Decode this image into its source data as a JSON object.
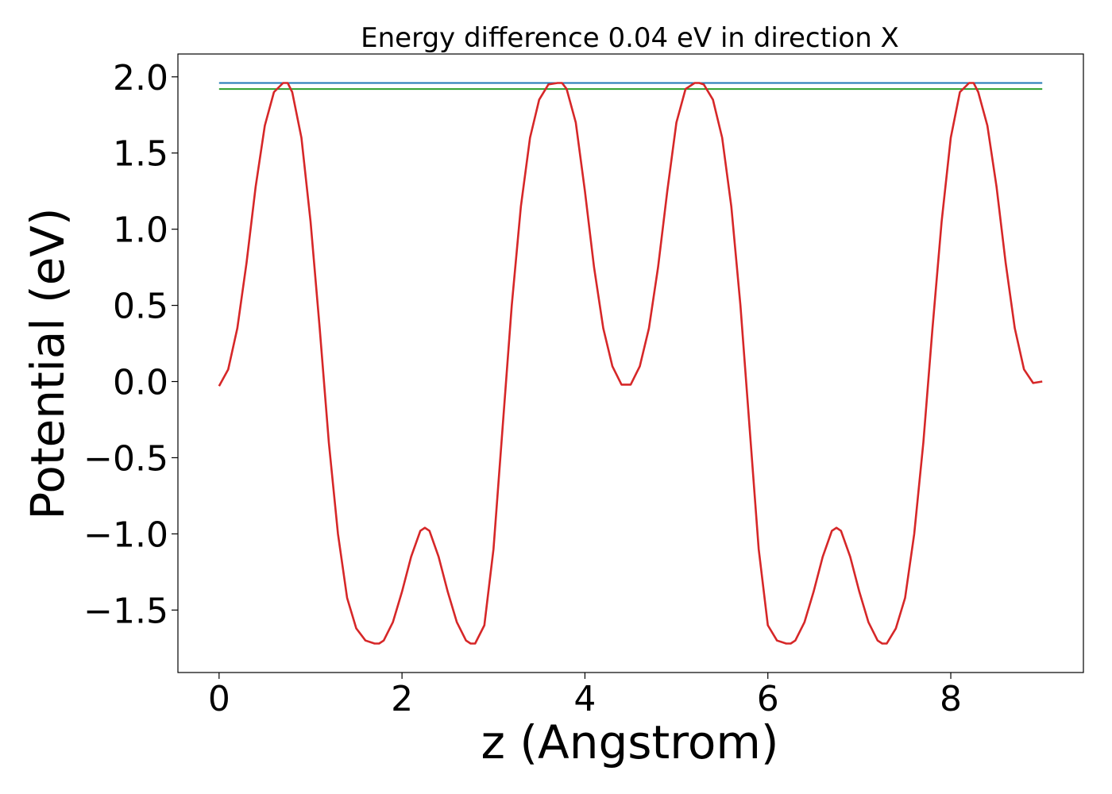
{
  "chart_data": {
    "type": "line",
    "title": "Energy difference 0.04 eV in direction X",
    "xlabel": "z (Angstrom)",
    "ylabel": "Potential (eV)",
    "xlim": [
      -0.45,
      9.45
    ],
    "ylim": [
      -1.91,
      2.15
    ],
    "xticks": [
      0,
      2,
      4,
      6,
      8
    ],
    "xtick_labels": [
      "0",
      "2",
      "4",
      "6",
      "8"
    ],
    "yticks": [
      -1.5,
      -1.0,
      -0.5,
      0.0,
      0.5,
      1.0,
      1.5,
      2.0
    ],
    "ytick_labels": [
      "−1.5",
      "−1.0",
      "−0.5",
      "0.0",
      "0.5",
      "1.0",
      "1.5",
      "2.0"
    ],
    "grid": false,
    "series": [
      {
        "color": "#1f77b4",
        "x": [
          0,
          9
        ],
        "y": [
          1.96,
          1.96
        ]
      },
      {
        "color": "#2ca02c",
        "x": [
          0,
          9
        ],
        "y": [
          1.92,
          1.92
        ]
      },
      {
        "color": "#d62728",
        "x": [
          0,
          0.1,
          0.2,
          0.3,
          0.4,
          0.5,
          0.6,
          0.7,
          0.75,
          0.8,
          0.9,
          1.0,
          1.1,
          1.2,
          1.3,
          1.4,
          1.5,
          1.6,
          1.7,
          1.75,
          1.8,
          1.9,
          2.0,
          2.1,
          2.2,
          2.25,
          2.3,
          2.4,
          2.5,
          2.6,
          2.7,
          2.75,
          2.8,
          2.9,
          3.0,
          3.1,
          3.2,
          3.3,
          3.4,
          3.5,
          3.6,
          3.7,
          3.75,
          3.8,
          3.9,
          4.0,
          4.1,
          4.2,
          4.3,
          4.4,
          4.5,
          4.6,
          4.7,
          4.8,
          4.9,
          5.0,
          5.1,
          5.2,
          5.25,
          5.3,
          5.4,
          5.5,
          5.6,
          5.7,
          5.8,
          5.9,
          6.0,
          6.1,
          6.2,
          6.25,
          6.3,
          6.4,
          6.5,
          6.6,
          6.7,
          6.75,
          6.8,
          6.9,
          7.0,
          7.1,
          7.2,
          7.25,
          7.3,
          7.4,
          7.5,
          7.6,
          7.7,
          7.8,
          7.9,
          8.0,
          8.1,
          8.2,
          8.25,
          8.3,
          8.4,
          8.5,
          8.6,
          8.7,
          8.8,
          8.9,
          9.0
        ],
        "y": [
          -0.03,
          0.08,
          0.35,
          0.78,
          1.28,
          1.68,
          1.9,
          1.96,
          1.96,
          1.9,
          1.6,
          1.05,
          0.35,
          -0.4,
          -1.0,
          -1.42,
          -1.62,
          -1.7,
          -1.72,
          -1.72,
          -1.7,
          -1.58,
          -1.38,
          -1.15,
          -0.98,
          -0.96,
          -0.98,
          -1.15,
          -1.38,
          -1.58,
          -1.7,
          -1.72,
          -1.72,
          -1.6,
          -1.1,
          -0.3,
          0.5,
          1.15,
          1.6,
          1.85,
          1.95,
          1.96,
          1.96,
          1.92,
          1.7,
          1.25,
          0.75,
          0.35,
          0.1,
          -0.02,
          -0.02,
          0.1,
          0.35,
          0.75,
          1.25,
          1.7,
          1.92,
          1.96,
          1.96,
          1.95,
          1.85,
          1.6,
          1.15,
          0.5,
          -0.3,
          -1.1,
          -1.6,
          -1.7,
          -1.72,
          -1.72,
          -1.7,
          -1.58,
          -1.38,
          -1.15,
          -0.98,
          -0.96,
          -0.98,
          -1.15,
          -1.38,
          -1.58,
          -1.7,
          -1.72,
          -1.72,
          -1.62,
          -1.42,
          -1.0,
          -0.4,
          0.35,
          1.05,
          1.6,
          1.9,
          1.96,
          1.96,
          1.9,
          1.68,
          1.28,
          0.78,
          0.35,
          0.08,
          -0.01,
          0.0
        ]
      }
    ]
  }
}
